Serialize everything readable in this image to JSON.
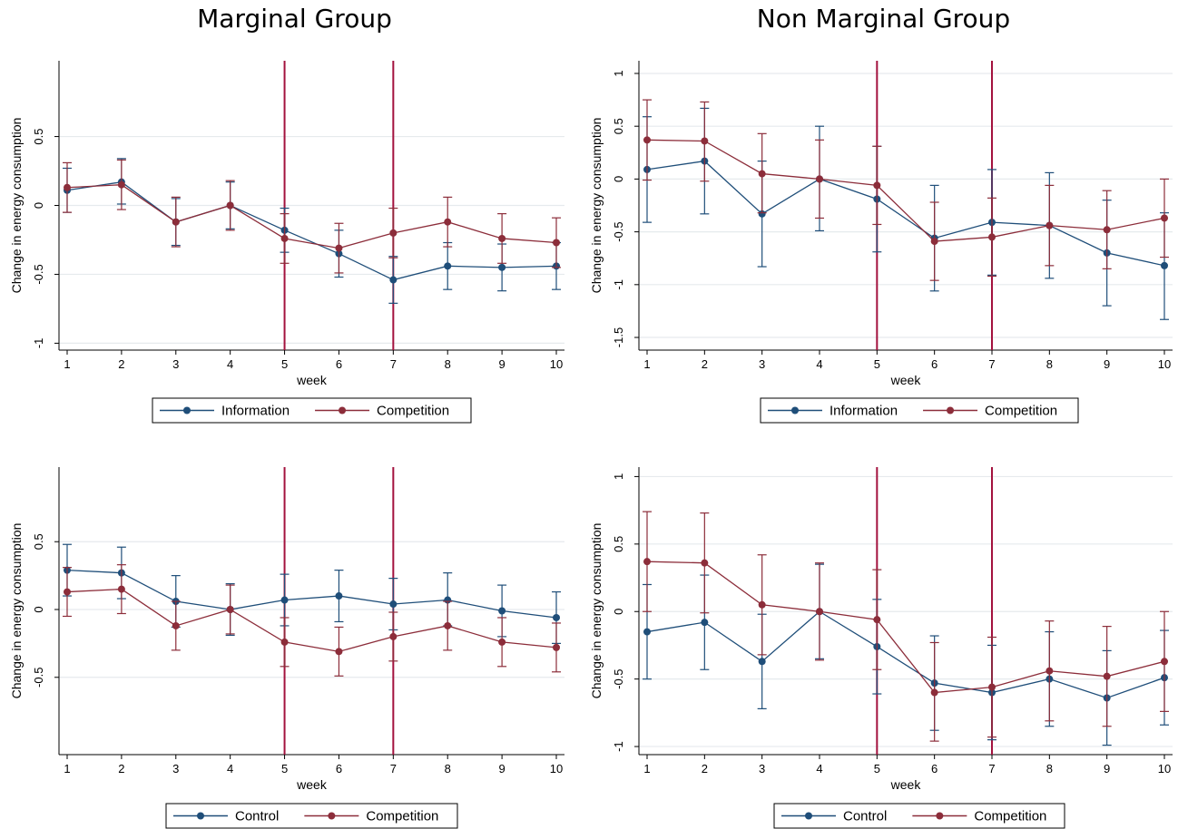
{
  "titles": {
    "left": "Marginal Group",
    "right": "Non Marginal Group"
  },
  "colors": {
    "series1": "#1f4e79",
    "series2": "#8c2d3a",
    "vline": "#a3123e",
    "grid": "#e6eaed",
    "axis": "#000000"
  },
  "chart_data": [
    {
      "type": "line",
      "x": [
        1,
        2,
        3,
        4,
        5,
        6,
        7,
        8,
        9,
        10
      ],
      "xlabel": "week",
      "ylabel": "Change in energy consumption",
      "ylim": [
        -1.05,
        1.05
      ],
      "yticks": [
        -1,
        -0.5,
        0,
        0.5
      ],
      "ytick_labels": [
        "-1",
        "-0.5",
        "0",
        "0.5"
      ],
      "vlines": [
        5,
        7
      ],
      "legend": "bottom",
      "series": [
        {
          "name": "Information",
          "values": [
            0.11,
            0.17,
            -0.12,
            0.0,
            -0.18,
            -0.35,
            -0.54,
            -0.44,
            -0.45,
            -0.44
          ],
          "ci_low": [
            -0.05,
            0.01,
            -0.29,
            -0.17,
            -0.34,
            -0.52,
            -0.71,
            -0.61,
            -0.62,
            -0.61
          ],
          "ci_high": [
            0.27,
            0.34,
            0.05,
            0.17,
            -0.02,
            -0.18,
            -0.37,
            -0.27,
            -0.28,
            -0.27
          ]
        },
        {
          "name": "Competition",
          "values": [
            0.13,
            0.15,
            -0.12,
            0.0,
            -0.24,
            -0.31,
            -0.2,
            -0.12,
            -0.24,
            -0.27
          ],
          "ci_low": [
            -0.05,
            -0.03,
            -0.3,
            -0.18,
            -0.42,
            -0.49,
            -0.38,
            -0.3,
            -0.42,
            -0.45
          ],
          "ci_high": [
            0.31,
            0.33,
            0.06,
            0.18,
            -0.06,
            -0.13,
            -0.02,
            0.06,
            -0.06,
            -0.09
          ]
        }
      ]
    },
    {
      "type": "line",
      "x": [
        1,
        2,
        3,
        4,
        5,
        6,
        7,
        8,
        9,
        10
      ],
      "xlabel": "week",
      "ylabel": "Change in energy consumption",
      "ylim": [
        -1.62,
        1.12
      ],
      "yticks": [
        -1.5,
        -1,
        -0.5,
        0,
        0.5,
        1
      ],
      "ytick_labels": [
        "-1.5",
        "-1",
        "-0.5",
        "0",
        "0.5",
        "1"
      ],
      "vlines": [
        5,
        7
      ],
      "legend": "bottom",
      "series": [
        {
          "name": "Information",
          "values": [
            0.09,
            0.17,
            -0.33,
            0.0,
            -0.19,
            -0.56,
            -0.41,
            -0.44,
            -0.7,
            -0.82
          ],
          "ci_low": [
            -0.41,
            -0.33,
            -0.83,
            -0.49,
            -0.69,
            -1.06,
            -0.91,
            -0.94,
            -1.2,
            -1.33
          ],
          "ci_high": [
            0.59,
            0.67,
            0.17,
            0.5,
            0.31,
            -0.06,
            0.09,
            0.06,
            -0.2,
            -0.32
          ]
        },
        {
          "name": "Competition",
          "values": [
            0.37,
            0.36,
            0.05,
            0.0,
            -0.06,
            -0.59,
            -0.55,
            -0.44,
            -0.48,
            -0.37
          ],
          "ci_low": [
            -0.01,
            -0.02,
            -0.32,
            -0.37,
            -0.43,
            -0.96,
            -0.92,
            -0.82,
            -0.85,
            -0.74
          ],
          "ci_high": [
            0.75,
            0.73,
            0.43,
            0.37,
            0.31,
            -0.22,
            -0.18,
            -0.06,
            -0.11,
            0.0
          ]
        }
      ]
    },
    {
      "type": "line",
      "x": [
        1,
        2,
        3,
        4,
        5,
        6,
        7,
        8,
        9,
        10
      ],
      "xlabel": "week",
      "ylabel": "Change in energy consumption",
      "ylim": [
        -1.07,
        1.05
      ],
      "yticks": [
        -0.5,
        0,
        0.5
      ],
      "ytick_labels": [
        "-0.5",
        "0",
        "0.5"
      ],
      "vlines": [
        5,
        7
      ],
      "legend": "bottom",
      "series": [
        {
          "name": "Control",
          "values": [
            0.29,
            0.27,
            0.06,
            0.0,
            0.07,
            0.1,
            0.04,
            0.07,
            -0.01,
            -0.06
          ],
          "ci_low": [
            0.1,
            0.08,
            -0.13,
            -0.19,
            -0.12,
            -0.09,
            -0.15,
            -0.12,
            -0.2,
            -0.25
          ],
          "ci_high": [
            0.48,
            0.46,
            0.25,
            0.19,
            0.26,
            0.29,
            0.23,
            0.27,
            0.18,
            0.13
          ]
        },
        {
          "name": "Competition",
          "values": [
            0.13,
            0.15,
            -0.12,
            0.0,
            -0.24,
            -0.31,
            -0.2,
            -0.12,
            -0.24,
            -0.28
          ],
          "ci_low": [
            -0.05,
            -0.03,
            -0.3,
            -0.18,
            -0.42,
            -0.49,
            -0.38,
            -0.3,
            -0.42,
            -0.46
          ],
          "ci_high": [
            0.31,
            0.33,
            0.06,
            0.18,
            -0.06,
            -0.13,
            -0.02,
            0.06,
            -0.06,
            -0.1
          ]
        }
      ]
    },
    {
      "type": "line",
      "x": [
        1,
        2,
        3,
        4,
        5,
        6,
        7,
        8,
        9,
        10
      ],
      "xlabel": "week",
      "ylabel": "Change in energy consumption",
      "ylim": [
        -1.06,
        1.07
      ],
      "yticks": [
        -1,
        -0.5,
        0,
        0.5,
        1
      ],
      "ytick_labels": [
        "-1",
        "-0.5",
        "0",
        "0.5",
        "1"
      ],
      "vlines": [
        5,
        7
      ],
      "legend": "bottom",
      "series": [
        {
          "name": "Control",
          "values": [
            -0.15,
            -0.08,
            -0.37,
            0.0,
            -0.26,
            -0.53,
            -0.6,
            -0.5,
            -0.64,
            -0.49
          ],
          "ci_low": [
            -0.5,
            -0.43,
            -0.72,
            -0.35,
            -0.61,
            -0.88,
            -0.95,
            -0.85,
            -0.99,
            -0.84
          ],
          "ci_high": [
            0.2,
            0.27,
            -0.02,
            0.35,
            0.09,
            -0.18,
            -0.25,
            -0.15,
            -0.29,
            -0.14
          ]
        },
        {
          "name": "Competition",
          "values": [
            0.37,
            0.36,
            0.05,
            0.0,
            -0.06,
            -0.6,
            -0.56,
            -0.44,
            -0.48,
            -0.37
          ],
          "ci_low": [
            0.0,
            -0.01,
            -0.32,
            -0.36,
            -0.43,
            -0.96,
            -0.93,
            -0.81,
            -0.85,
            -0.74
          ],
          "ci_high": [
            0.74,
            0.73,
            0.42,
            0.36,
            0.31,
            -0.23,
            -0.19,
            -0.07,
            -0.11,
            0.0
          ]
        }
      ]
    }
  ]
}
